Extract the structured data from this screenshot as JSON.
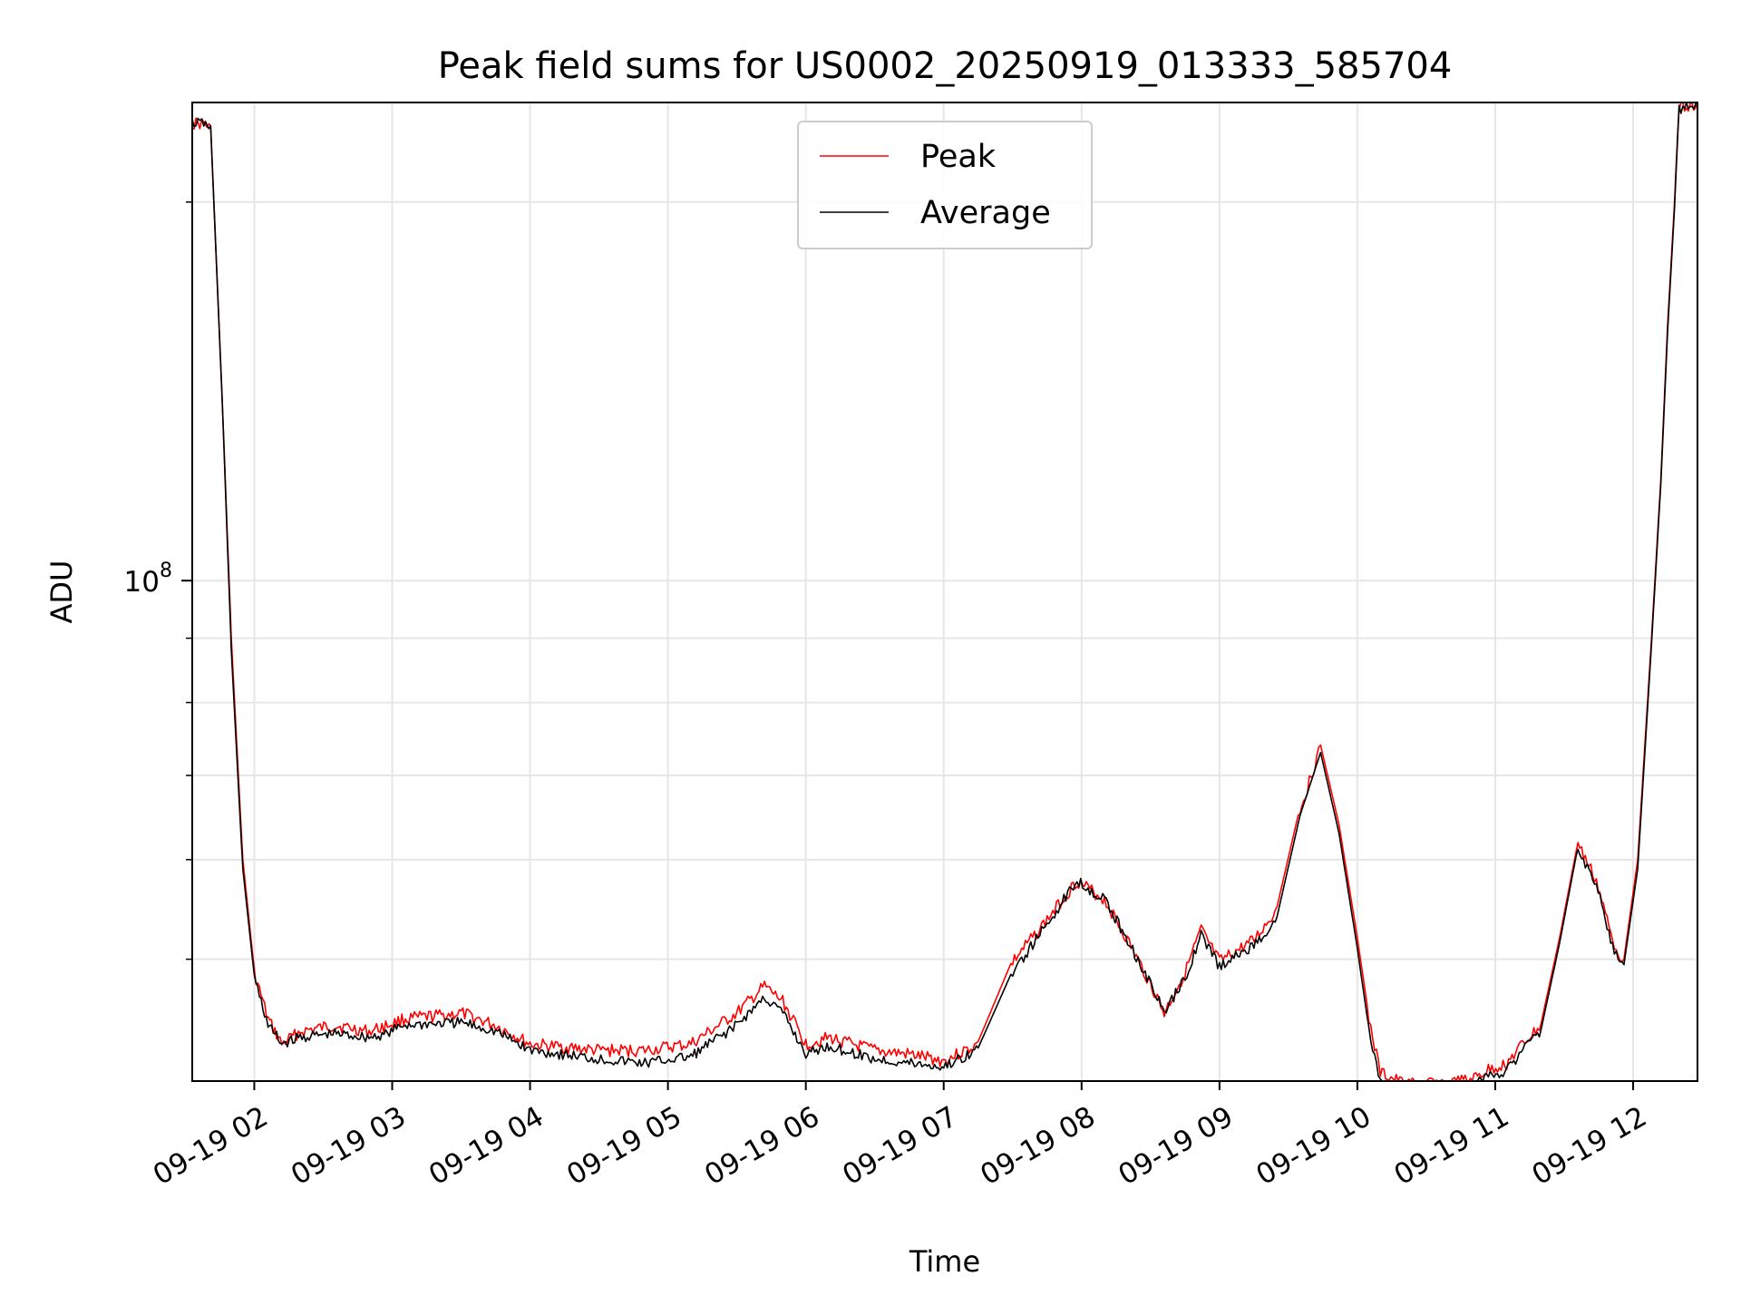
{
  "chart_data": {
    "type": "line",
    "title": "Peak field sums for US0002_20250919_013333_585704",
    "xlabel": "Time",
    "ylabel": "ADU",
    "x_scale": "time",
    "y_scale": "log",
    "xlim": [
      "2025-09-19 01:33",
      "2025-09-19 12:28"
    ],
    "ylim": [
      40000000,
      240000000
    ],
    "grid": true,
    "legend_position": "upper center",
    "x_tick_labels": [
      "09-19 02",
      "09-19 03",
      "09-19 04",
      "09-19 05",
      "09-19 06",
      "09-19 07",
      "09-19 08",
      "09-19 09",
      "09-19 10",
      "09-19 11",
      "09-19 12"
    ],
    "x_ticks": [
      "2025-09-19 02:00",
      "2025-09-19 03:00",
      "2025-09-19 04:00",
      "2025-09-19 05:00",
      "2025-09-19 06:00",
      "2025-09-19 07:00",
      "2025-09-19 08:00",
      "2025-09-19 09:00",
      "2025-09-19 10:00",
      "2025-09-19 11:00",
      "2025-09-19 12:00"
    ],
    "y_tick_label_main": "10^8",
    "y_tick_main_value": 100000000,
    "y_minor_ticks": [
      50000000,
      60000000,
      70000000,
      80000000,
      90000000,
      200000000
    ],
    "series": [
      {
        "name": "Peak",
        "color": "#ff0000",
        "x": [
          "2025-09-19 01:33",
          "2025-09-19 01:38",
          "2025-09-19 01:41",
          "2025-09-19 01:46",
          "2025-09-19 01:50",
          "2025-09-19 01:55",
          "2025-09-19 02:00",
          "2025-09-19 02:06",
          "2025-09-19 02:12",
          "2025-09-19 02:20",
          "2025-09-19 02:35",
          "2025-09-19 02:50",
          "2025-09-19 02:58",
          "2025-09-19 03:05",
          "2025-09-19 03:30",
          "2025-09-19 03:45",
          "2025-09-19 04:00",
          "2025-09-19 04:30",
          "2025-09-19 04:50",
          "2025-09-19 05:10",
          "2025-09-19 05:30",
          "2025-09-19 05:42",
          "2025-09-19 05:50",
          "2025-09-19 06:00",
          "2025-09-19 06:10",
          "2025-09-19 06:30",
          "2025-09-19 06:45",
          "2025-09-19 07:00",
          "2025-09-19 07:15",
          "2025-09-19 07:30",
          "2025-09-19 07:45",
          "2025-09-19 07:58",
          "2025-09-19 08:10",
          "2025-09-19 08:20",
          "2025-09-19 08:30",
          "2025-09-19 08:36",
          "2025-09-19 08:45",
          "2025-09-19 08:52",
          "2025-09-19 09:00",
          "2025-09-19 09:15",
          "2025-09-19 09:25",
          "2025-09-19 09:35",
          "2025-09-19 09:44",
          "2025-09-19 09:52",
          "2025-09-19 10:00",
          "2025-09-19 10:05",
          "2025-09-19 10:10",
          "2025-09-19 10:20",
          "2025-09-19 10:40",
          "2025-09-19 10:50",
          "2025-09-19 10:57",
          "2025-09-19 11:05",
          "2025-09-19 11:12",
          "2025-09-19 11:20",
          "2025-09-19 11:28",
          "2025-09-19 11:36",
          "2025-09-19 11:44",
          "2025-09-19 11:51",
          "2025-09-19 11:56",
          "2025-09-19 12:02",
          "2025-09-19 12:08",
          "2025-09-19 12:12",
          "2025-09-19 12:15",
          "2025-09-19 12:18",
          "2025-09-19 12:20",
          "2025-09-19 12:28"
        ],
        "values": [
          232000000,
          232000000,
          230000000,
          140000000,
          90000000,
          60000000,
          49000000,
          45000000,
          43000000,
          44000000,
          44500000,
          44000000,
          44500000,
          45000000,
          45500000,
          44500000,
          43000000,
          42500000,
          42500000,
          43000000,
          45500000,
          47800000,
          46500000,
          43000000,
          43500000,
          42500000,
          42200000,
          41700000,
          43000000,
          50000000,
          54000000,
          58000000,
          56000000,
          52000000,
          48000000,
          45500000,
          49000000,
          53000000,
          50000000,
          52000000,
          55000000,
          66000000,
          74000000,
          64000000,
          52000000,
          45000000,
          40800000,
          40000000,
          40000000,
          40300000,
          41000000,
          41500000,
          43000000,
          44500000,
          52000000,
          62000000,
          58000000,
          52000000,
          50000000,
          60000000,
          90000000,
          120000000,
          160000000,
          200000000,
          240000000,
          240000000
        ]
      },
      {
        "name": "Average",
        "color": "#000000",
        "x": [
          "2025-09-19 01:33",
          "2025-09-19 01:38",
          "2025-09-19 01:41",
          "2025-09-19 01:46",
          "2025-09-19 01:50",
          "2025-09-19 01:55",
          "2025-09-19 02:00",
          "2025-09-19 02:06",
          "2025-09-19 02:12",
          "2025-09-19 02:20",
          "2025-09-19 02:35",
          "2025-09-19 02:50",
          "2025-09-19 02:58",
          "2025-09-19 03:05",
          "2025-09-19 03:30",
          "2025-09-19 03:45",
          "2025-09-19 04:00",
          "2025-09-19 04:30",
          "2025-09-19 04:50",
          "2025-09-19 05:10",
          "2025-09-19 05:30",
          "2025-09-19 05:42",
          "2025-09-19 05:50",
          "2025-09-19 06:00",
          "2025-09-19 06:10",
          "2025-09-19 06:30",
          "2025-09-19 06:45",
          "2025-09-19 07:00",
          "2025-09-19 07:15",
          "2025-09-19 07:30",
          "2025-09-19 07:45",
          "2025-09-19 07:58",
          "2025-09-19 08:10",
          "2025-09-19 08:20",
          "2025-09-19 08:30",
          "2025-09-19 08:36",
          "2025-09-19 08:45",
          "2025-09-19 08:52",
          "2025-09-19 09:00",
          "2025-09-19 09:15",
          "2025-09-19 09:25",
          "2025-09-19 09:35",
          "2025-09-19 09:44",
          "2025-09-19 09:52",
          "2025-09-19 10:00",
          "2025-09-19 10:05",
          "2025-09-19 10:10",
          "2025-09-19 10:20",
          "2025-09-19 10:40",
          "2025-09-19 10:50",
          "2025-09-19 10:57",
          "2025-09-19 11:05",
          "2025-09-19 11:12",
          "2025-09-19 11:20",
          "2025-09-19 11:28",
          "2025-09-19 11:36",
          "2025-09-19 11:44",
          "2025-09-19 11:51",
          "2025-09-19 11:56",
          "2025-09-19 12:02",
          "2025-09-19 12:08",
          "2025-09-19 12:12",
          "2025-09-19 12:15",
          "2025-09-19 12:18",
          "2025-09-19 12:20",
          "2025-09-19 12:28"
        ],
        "values": [
          232000000,
          232000000,
          230000000,
          140000000,
          88000000,
          59000000,
          48500000,
          44500000,
          43000000,
          43500000,
          43800000,
          43500000,
          43800000,
          44500000,
          44700000,
          44000000,
          42500000,
          41800000,
          41500000,
          42000000,
          44500000,
          46800000,
          45500000,
          42200000,
          42800000,
          41800000,
          41500000,
          41200000,
          42500000,
          49000000,
          53500000,
          58000000,
          56000000,
          52000000,
          48000000,
          45500000,
          48500000,
          52500000,
          49500000,
          51500000,
          54000000,
          65000000,
          73000000,
          63000000,
          51000000,
          44000000,
          40000000,
          39500000,
          39500000,
          39800000,
          40500000,
          41000000,
          42500000,
          44000000,
          51500000,
          61500000,
          57500000,
          51500000,
          49500000,
          59000000,
          89000000,
          119000000,
          158000000,
          198000000,
          238000000,
          240000000
        ]
      }
    ]
  }
}
